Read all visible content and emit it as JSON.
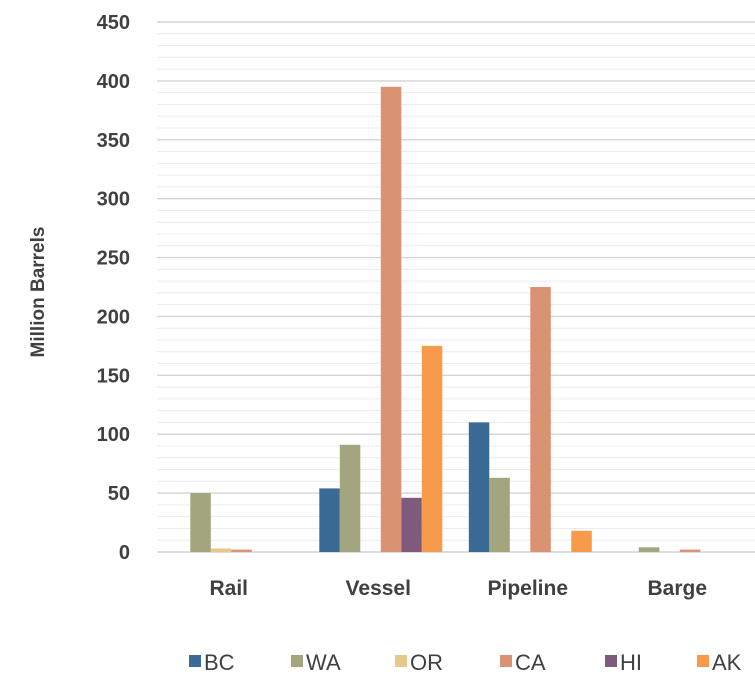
{
  "chart_data": {
    "type": "bar",
    "title": "",
    "xlabel": "",
    "ylabel": "Million Barrels",
    "ylim": [
      0,
      450
    ],
    "yticks": [
      0,
      50,
      100,
      150,
      200,
      250,
      300,
      350,
      400,
      450
    ],
    "grid": true,
    "legend_position": "bottom",
    "categories": [
      "Rail",
      "Vessel",
      "Pipeline",
      "Barge"
    ],
    "series": [
      {
        "name": "BC",
        "color": "#3a6b94",
        "values": [
          0,
          54,
          110,
          0
        ]
      },
      {
        "name": "WA",
        "color": "#a3a57e",
        "values": [
          50,
          91,
          63,
          4
        ]
      },
      {
        "name": "OR",
        "color": "#e8c88a",
        "values": [
          3,
          0,
          0,
          0
        ]
      },
      {
        "name": "CA",
        "color": "#d99272",
        "values": [
          2,
          395,
          225,
          2
        ]
      },
      {
        "name": "HI",
        "color": "#7d5a7e",
        "values": [
          0,
          46,
          0,
          0
        ]
      },
      {
        "name": "AK",
        "color": "#f79a4a",
        "values": [
          0,
          175,
          18,
          0
        ]
      }
    ]
  }
}
